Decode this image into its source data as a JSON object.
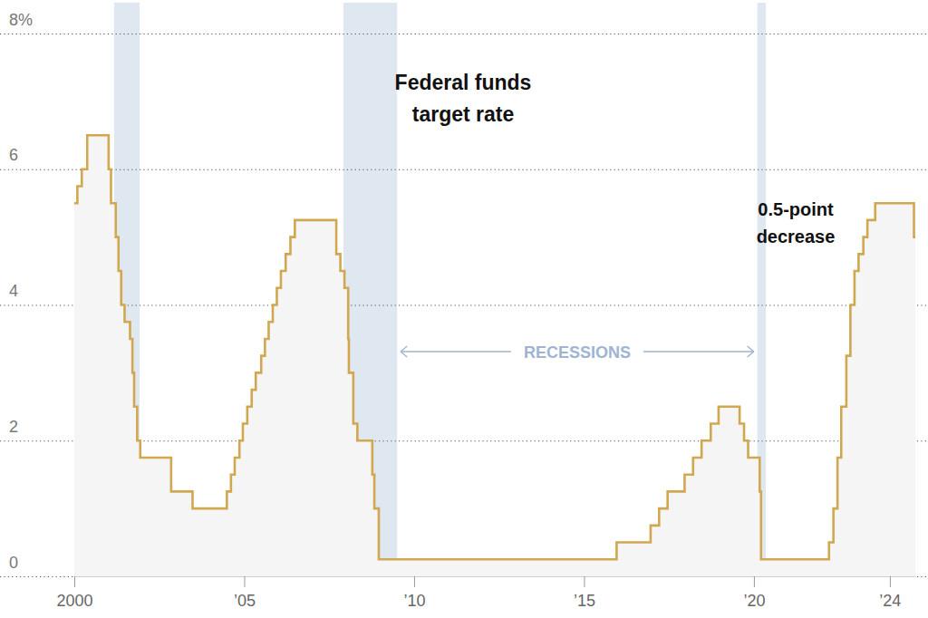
{
  "chart_data": {
    "type": "line",
    "title": "Federal funds target rate",
    "annotations": [
      "0.5-point decrease",
      "RECESSIONS"
    ],
    "line_style": "step",
    "color": "#d1a74f",
    "grid": true,
    "x": [
      2000.0,
      2000.09,
      2000.22,
      2000.38,
      2001.01,
      2001.08,
      2001.22,
      2001.3,
      2001.38,
      2001.48,
      2001.64,
      2001.71,
      2001.76,
      2001.85,
      2001.94,
      2002.85,
      2003.48,
      2004.49,
      2004.61,
      2004.72,
      2004.86,
      2004.96,
      2005.09,
      2005.22,
      2005.34,
      2005.5,
      2005.61,
      2005.72,
      2005.84,
      2005.96,
      2006.08,
      2006.22,
      2006.36,
      2006.49,
      2007.71,
      2007.83,
      2007.95,
      2008.06,
      2008.08,
      2008.21,
      2008.33,
      2008.77,
      2008.83,
      2008.96,
      2015.96,
      2016.96,
      2017.21,
      2017.46,
      2017.96,
      2018.21,
      2018.46,
      2018.73,
      2018.96,
      2019.58,
      2019.71,
      2019.83,
      2020.17,
      2020.21,
      2022.21,
      2022.34,
      2022.46,
      2022.57,
      2022.72,
      2022.84,
      2022.96,
      2023.08,
      2023.22,
      2023.34,
      2023.57,
      2024.71,
      2024.75
    ],
    "values": [
      5.5,
      5.75,
      6.0,
      6.5,
      6.0,
      5.5,
      5.0,
      4.5,
      4.0,
      3.75,
      3.5,
      3.0,
      2.5,
      2.0,
      1.75,
      1.25,
      1.0,
      1.25,
      1.5,
      1.75,
      2.0,
      2.25,
      2.5,
      2.75,
      3.0,
      3.25,
      3.5,
      3.75,
      4.0,
      4.25,
      4.5,
      4.75,
      5.0,
      5.25,
      4.75,
      4.5,
      4.25,
      3.5,
      3.0,
      2.25,
      2.0,
      1.5,
      1.0,
      0.25,
      0.5,
      0.75,
      1.0,
      1.25,
      1.5,
      1.75,
      2.0,
      2.25,
      2.5,
      2.25,
      2.0,
      1.75,
      1.25,
      0.25,
      0.5,
      1.0,
      1.75,
      2.5,
      3.25,
      4.0,
      4.5,
      4.75,
      5.0,
      5.25,
      5.5,
      5.0,
      5.0
    ],
    "recessions": [
      [
        2001.17,
        2001.92
      ],
      [
        2007.92,
        2009.5
      ],
      [
        2020.1,
        2020.35
      ]
    ],
    "xlim": [
      2000,
      2024.75
    ],
    "xticks": [
      {
        "value": 2000,
        "label": "2000"
      },
      {
        "value": 2005,
        "label": "’05"
      },
      {
        "value": 2010,
        "label": "’10"
      },
      {
        "value": 2015,
        "label": "’15"
      },
      {
        "value": 2020,
        "label": "’20"
      },
      {
        "value": 2024,
        "label": "’24"
      }
    ],
    "ylim": [
      0,
      8
    ],
    "yticks": [
      0,
      2,
      4,
      6,
      {
        "value": 8,
        "label": "8%"
      }
    ]
  }
}
